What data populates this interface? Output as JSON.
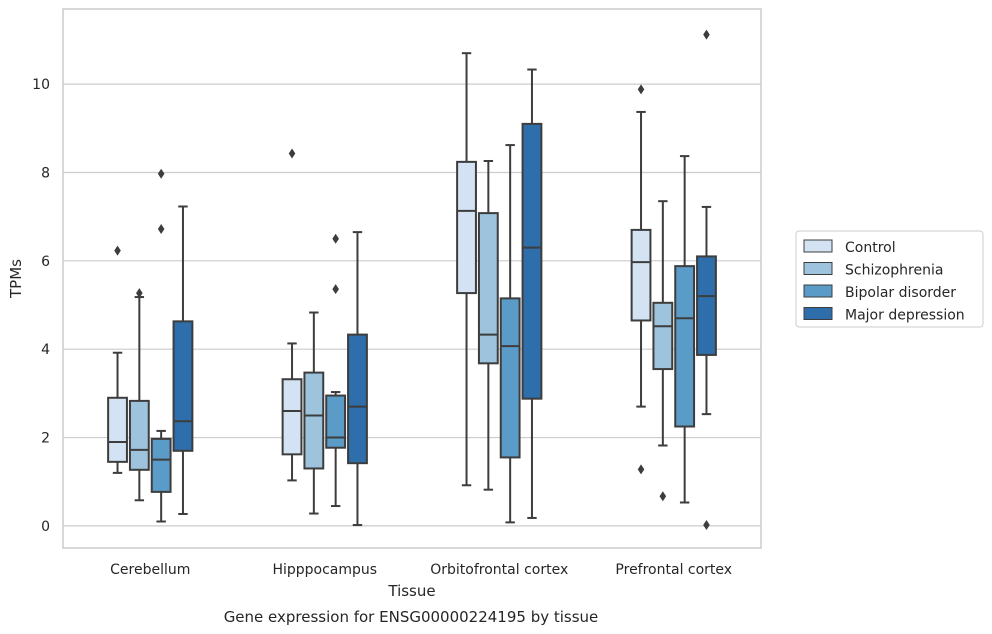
{
  "chart_data": {
    "type": "boxplot",
    "caption": "Gene expression for ENSG00000224195 by tissue",
    "xlabel": "Tissue",
    "ylabel": "TPMs",
    "ylim": [
      -0.5,
      11.7
    ],
    "yticks": [
      0,
      2,
      4,
      6,
      8,
      10
    ],
    "grid": true,
    "legend_position": "right",
    "categories": [
      "Cerebellum",
      "Hipppocampus",
      "Orbitofrontal cortex",
      "Prefrontal cortex"
    ],
    "series": [
      {
        "name": "Control",
        "color": "#d4e3f3",
        "boxes": [
          {
            "whislo": 1.2,
            "q1": 1.45,
            "med": 1.9,
            "q3": 2.9,
            "whishi": 3.92,
            "fliers": [
              6.23
            ]
          },
          {
            "whislo": 1.03,
            "q1": 1.62,
            "med": 2.6,
            "q3": 3.32,
            "whishi": 4.13,
            "fliers": [
              8.43
            ]
          },
          {
            "whislo": 0.92,
            "q1": 5.27,
            "med": 7.13,
            "q3": 8.24,
            "whishi": 10.7,
            "fliers": []
          },
          {
            "whislo": 2.7,
            "q1": 4.65,
            "med": 5.97,
            "q3": 6.7,
            "whishi": 9.37,
            "fliers": [
              9.88,
              1.28
            ]
          }
        ]
      },
      {
        "name": "Schizophrenia",
        "color": "#9dc3dd",
        "boxes": [
          {
            "whislo": 0.58,
            "q1": 1.27,
            "med": 1.72,
            "q3": 2.83,
            "whishi": 5.18,
            "fliers": [
              5.27
            ]
          },
          {
            "whislo": 0.28,
            "q1": 1.3,
            "med": 2.5,
            "q3": 3.47,
            "whishi": 4.83,
            "fliers": []
          },
          {
            "whislo": 0.82,
            "q1": 3.68,
            "med": 4.33,
            "q3": 7.08,
            "whishi": 8.26,
            "fliers": []
          },
          {
            "whislo": 1.82,
            "q1": 3.55,
            "med": 4.52,
            "q3": 5.05,
            "whishi": 7.35,
            "fliers": [
              0.67
            ]
          }
        ]
      },
      {
        "name": "Bipolar disorder",
        "color": "#5b9bc8",
        "boxes": [
          {
            "whislo": 0.1,
            "q1": 0.77,
            "med": 1.5,
            "q3": 1.97,
            "whishi": 2.15,
            "fliers": [
              7.97,
              6.72
            ]
          },
          {
            "whislo": 0.45,
            "q1": 1.77,
            "med": 2.0,
            "q3": 2.95,
            "whishi": 3.03,
            "fliers": [
              6.5,
              5.36
            ]
          },
          {
            "whislo": 0.08,
            "q1": 1.55,
            "med": 4.07,
            "q3": 5.15,
            "whishi": 8.62,
            "fliers": []
          },
          {
            "whislo": 0.53,
            "q1": 2.25,
            "med": 4.7,
            "q3": 5.88,
            "whishi": 8.37,
            "fliers": []
          }
        ]
      },
      {
        "name": "Major depression",
        "color": "#2e6eaa",
        "boxes": [
          {
            "whislo": 0.27,
            "q1": 1.7,
            "med": 2.37,
            "q3": 4.63,
            "whishi": 7.23,
            "fliers": []
          },
          {
            "whislo": 0.02,
            "q1": 1.42,
            "med": 2.7,
            "q3": 4.33,
            "whishi": 6.65,
            "fliers": []
          },
          {
            "whislo": 0.18,
            "q1": 2.88,
            "med": 6.3,
            "q3": 9.1,
            "whishi": 10.33,
            "fliers": []
          },
          {
            "whislo": 2.53,
            "q1": 3.87,
            "med": 5.2,
            "q3": 6.1,
            "whishi": 7.22,
            "fliers": [
              11.12,
              0.02
            ]
          }
        ]
      }
    ]
  }
}
